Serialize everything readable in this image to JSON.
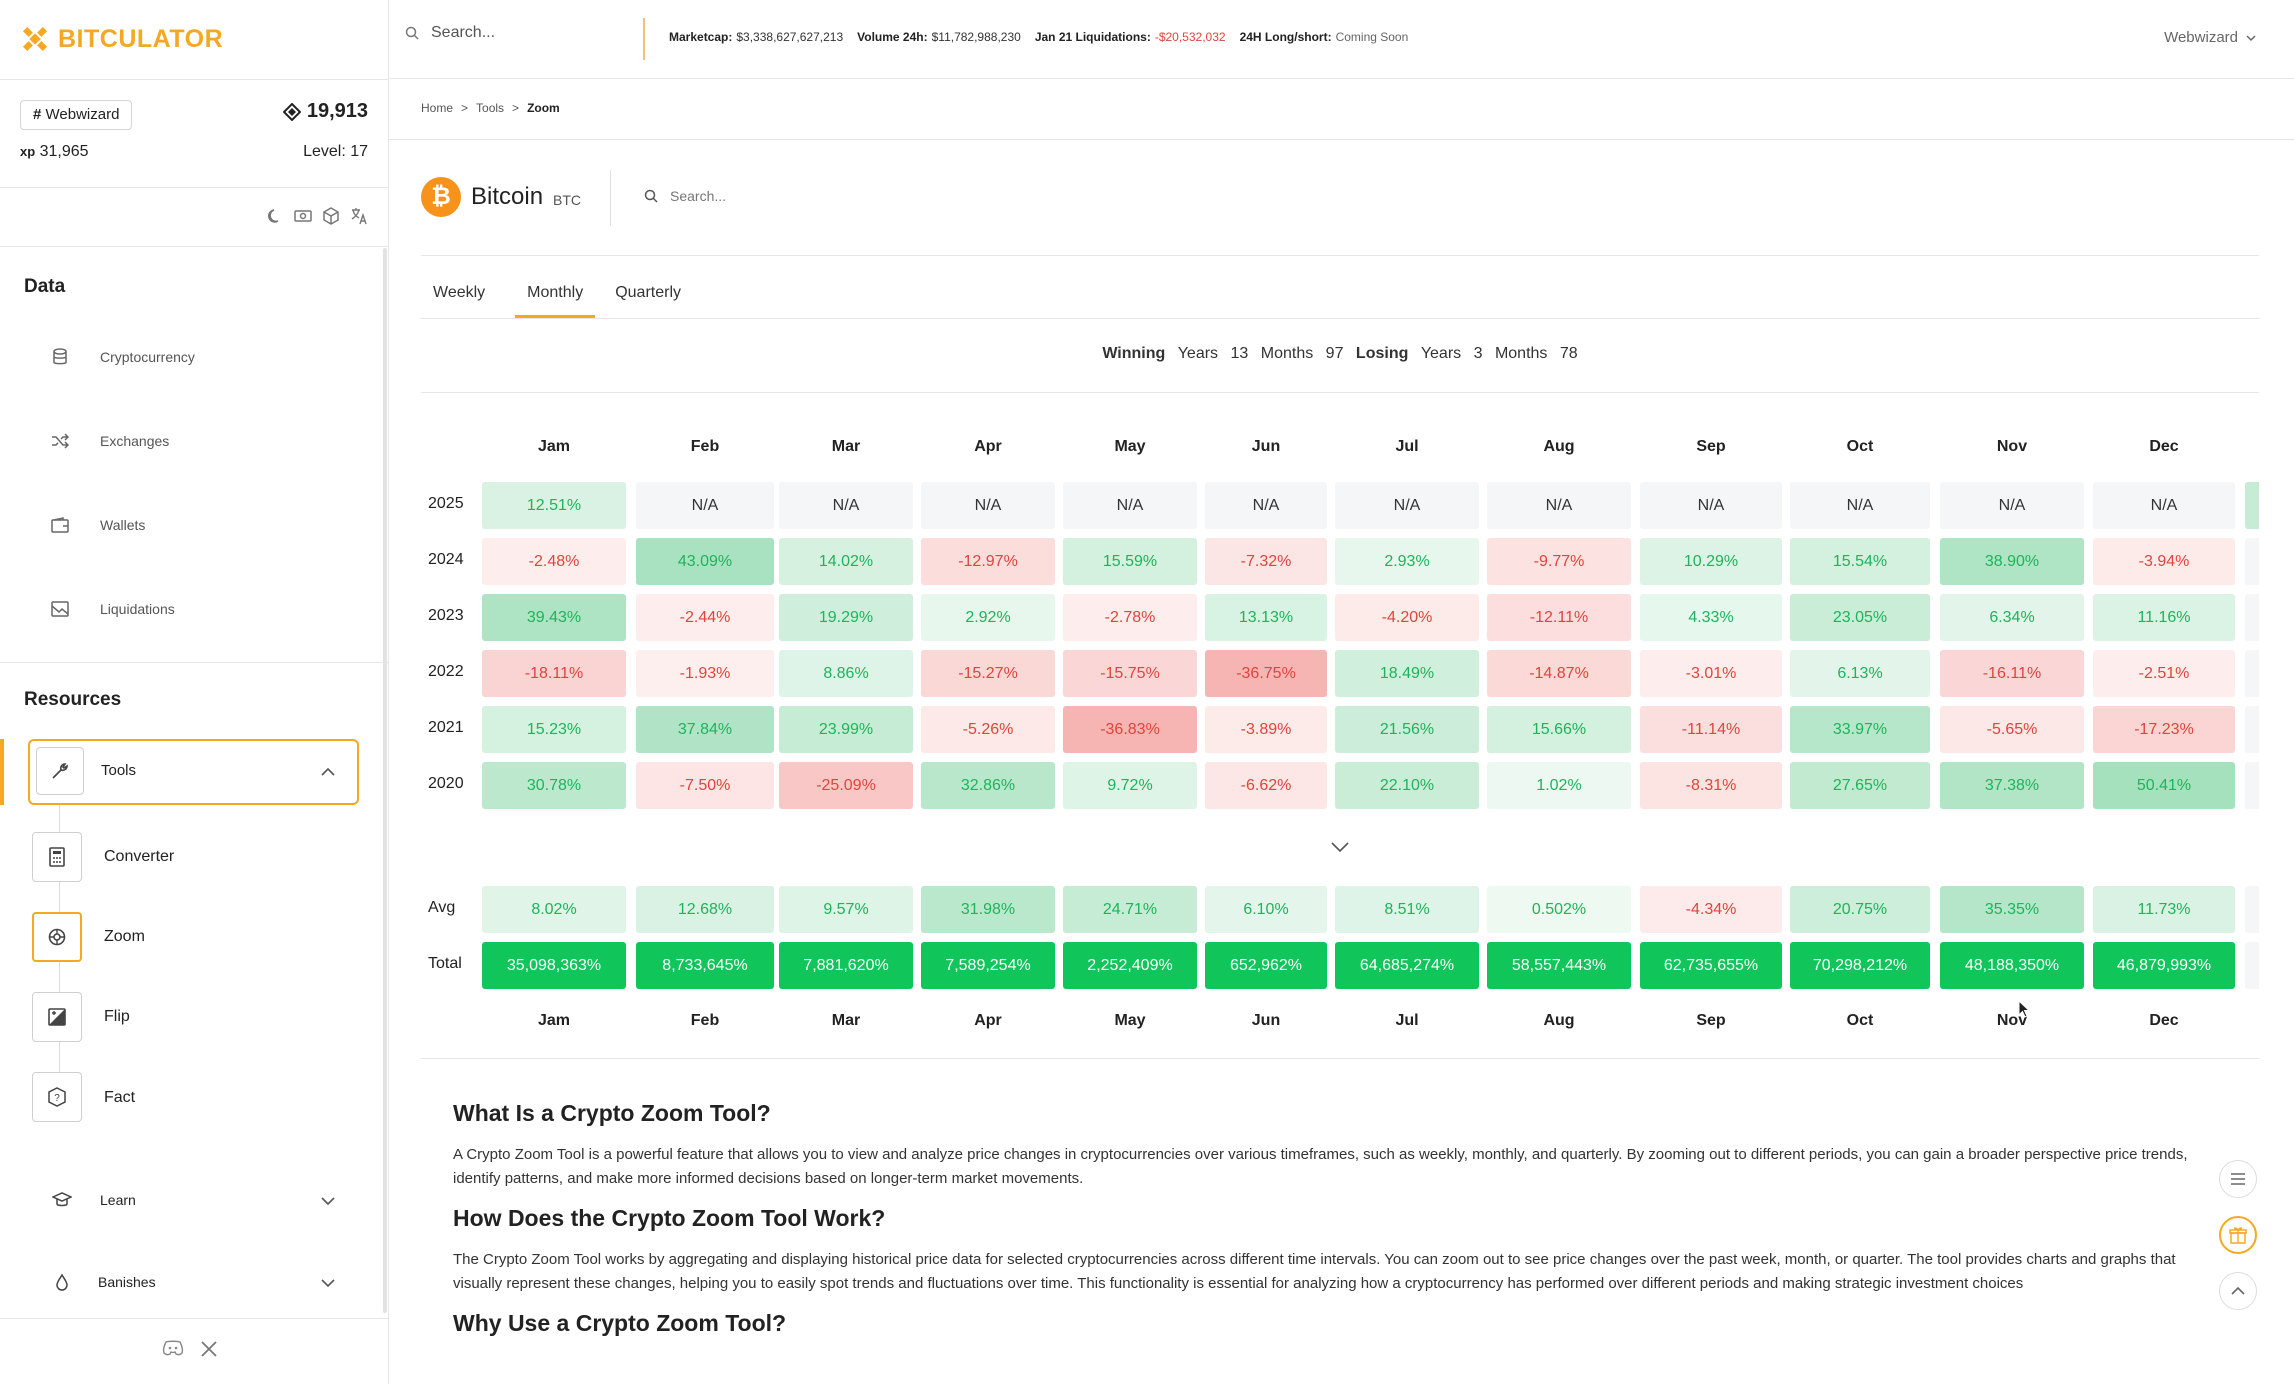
{
  "app": {
    "logo_text": "BITCULATOR"
  },
  "user": {
    "tag_prefix": "#",
    "name": "Webwizard",
    "coins": "19,913",
    "xp_label": "xp",
    "xp": "31,965",
    "level": "Level: 17"
  },
  "sidebar": {
    "data_title": "Data",
    "data_items": [
      {
        "label": "Cryptocurrency",
        "icon": "database-icon"
      },
      {
        "label": "Exchanges",
        "icon": "shuffle-icon"
      },
      {
        "label": "Wallets",
        "icon": "wallet-icon"
      },
      {
        "label": "Liquidations",
        "icon": "chart-icon"
      }
    ],
    "resources_title": "Resources",
    "tools_label": "Tools",
    "tools": [
      {
        "label": "Converter",
        "icon": "calculator-icon"
      },
      {
        "label": "Zoom",
        "icon": "zoom-icon"
      },
      {
        "label": "Flip",
        "icon": "flip-icon"
      },
      {
        "label": "Fact",
        "icon": "fact-icon"
      }
    ],
    "learn_label": "Learn",
    "banishes_label": "Banishes"
  },
  "topbar": {
    "search_placeholder": "Search...",
    "marketcap_label": "Marketcap:",
    "marketcap": "$3,338,627,627,213",
    "volume_label": "Volume 24h:",
    "volume": "$11,782,988,230",
    "liq_label": "Jan 21 Liquidations:",
    "liq": "-$20,532,032",
    "longshort_label": "24H Long/short:",
    "longshort": "Coming Soon",
    "user_menu": "Webwizard"
  },
  "breadcrumb": {
    "home": "Home",
    "tools": "Tools",
    "current": "Zoom",
    "sep": ">"
  },
  "coin": {
    "name": "Bitcoin",
    "symbol": "BTC",
    "search_placeholder": "Search..."
  },
  "tabs": [
    "Weekly",
    "Monthly",
    "Quarterly"
  ],
  "winloss": {
    "winning": "Winning",
    "years_label": "Years",
    "win_years": "13",
    "months_label": "Months",
    "win_months": "97",
    "losing": "Losing",
    "lose_years": "3",
    "lose_months": "78"
  },
  "colors": {
    "accent": "#f7a823",
    "positive": "#1fb35b",
    "negative": "#e0443c",
    "total": "#10c65a"
  },
  "table": {
    "months": [
      "Jam",
      "Feb",
      "Mar",
      "Apr",
      "May",
      "Jun",
      "Jul",
      "Aug",
      "Sep",
      "Oct",
      "Nov",
      "Dec"
    ],
    "rows": [
      {
        "year": "2025",
        "cells": [
          "12.51%",
          "N/A",
          "N/A",
          "N/A",
          "N/A",
          "N/A",
          "N/A",
          "N/A",
          "N/A",
          "N/A",
          "N/A",
          "N/A"
        ]
      },
      {
        "year": "2024",
        "cells": [
          "-2.48%",
          "43.09%",
          "14.02%",
          "-12.97%",
          "15.59%",
          "-7.32%",
          "2.93%",
          "-9.77%",
          "10.29%",
          "15.54%",
          "38.90%",
          "-3.94%"
        ]
      },
      {
        "year": "2023",
        "cells": [
          "39.43%",
          "-2.44%",
          "19.29%",
          "2.92%",
          "-2.78%",
          "13.13%",
          "-4.20%",
          "-12.11%",
          "4.33%",
          "23.05%",
          "6.34%",
          "11.16%"
        ]
      },
      {
        "year": "2022",
        "cells": [
          "-18.11%",
          "-1.93%",
          "8.86%",
          "-15.27%",
          "-15.75%",
          "-36.75%",
          "18.49%",
          "-14.87%",
          "-3.01%",
          "6.13%",
          "-16.11%",
          "-2.51%"
        ]
      },
      {
        "year": "2021",
        "cells": [
          "15.23%",
          "37.84%",
          "23.99%",
          "-5.26%",
          "-36.83%",
          "-3.89%",
          "21.56%",
          "15.66%",
          "-11.14%",
          "33.97%",
          "-5.65%",
          "-17.23%"
        ]
      },
      {
        "year": "2020",
        "cells": [
          "30.78%",
          "-7.50%",
          "-25.09%",
          "32.86%",
          "9.72%",
          "-6.62%",
          "22.10%",
          "1.02%",
          "-8.31%",
          "27.65%",
          "37.38%",
          "50.41%"
        ]
      }
    ],
    "avg_label": "Avg",
    "avg": [
      "8.02%",
      "12.68%",
      "9.57%",
      "31.98%",
      "24.71%",
      "6.10%",
      "8.51%",
      "0.502%",
      "-4.34%",
      "20.75%",
      "35.35%",
      "11.73%"
    ],
    "total_label": "Total",
    "total": [
      "35,098,363%",
      "8,733,645%",
      "7,881,620%",
      "7,589,254%",
      "2,252,409%",
      "652,962%",
      "64,685,274%",
      "58,557,443%",
      "62,735,655%",
      "70,298,212%",
      "48,188,350%",
      "46,879,993%"
    ]
  },
  "article": {
    "h1": "What Is a Crypto Zoom Tool?",
    "p1": "A Crypto Zoom Tool is a powerful feature that allows you to view and analyze price changes in cryptocurrencies over various timeframes, such as weekly, monthly, and quarterly. By zooming out to different periods, you can gain a broader perspective price trends, identify patterns, and make more informed decisions based on longer-term market movements.",
    "h2": "How Does the Crypto Zoom Tool Work?",
    "p2": "The Crypto Zoom Tool works by aggregating and displaying historical price data for selected cryptocurrencies across different time intervals. You can zoom out to see price changes over the past week, month, or quarter. The tool provides charts and graphs that visually represent these changes, helping you to easily spot trends and fluctuations over time. This functionality is essential for analyzing how a cryptocurrency has performed over different periods and making strategic investment choices",
    "h3": "Why Use a Crypto Zoom Tool?"
  }
}
